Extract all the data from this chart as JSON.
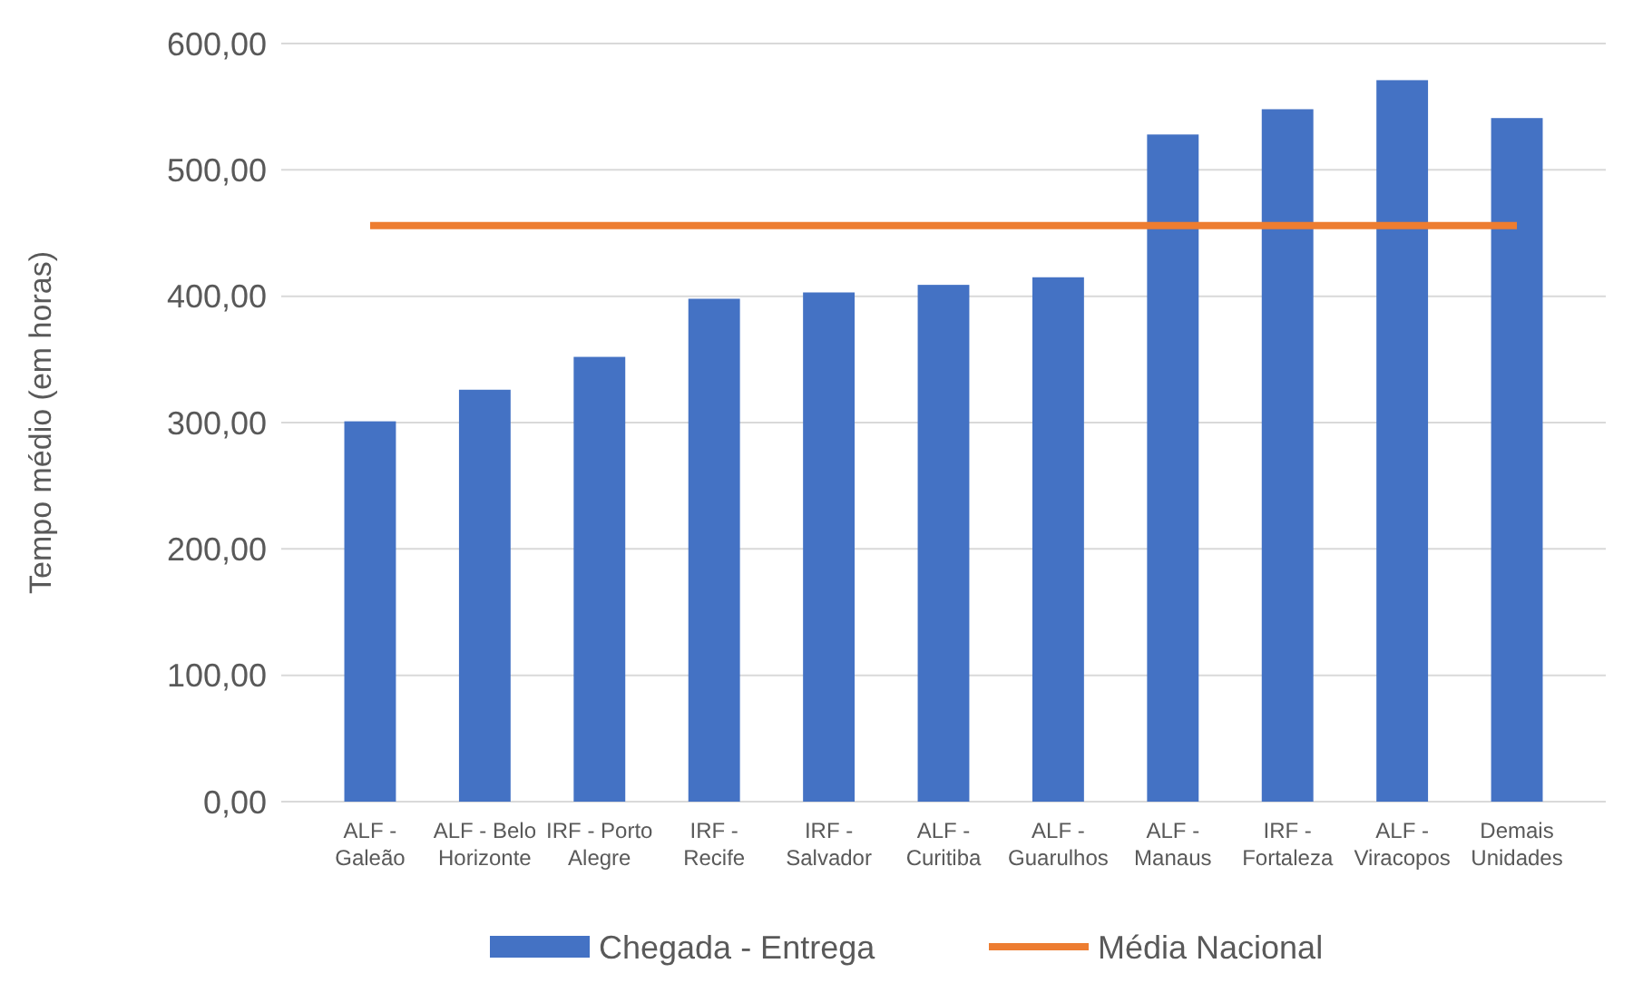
{
  "chart_data": {
    "type": "bar",
    "ylabel": "Tempo médio (em horas)",
    "categories": [
      "ALF - Galeão",
      "ALF - Belo Horizonte",
      "IRF - Porto Alegre",
      "IRF - Recife",
      "IRF - Salvador",
      "ALF - Curitiba",
      "ALF - Guarulhos",
      "ALF - Manaus",
      "IRF - Fortaleza",
      "ALF - Viracopos",
      "Demais Unidades"
    ],
    "series": [
      {
        "name": "Chegada - Entrega",
        "color": "#4472c4",
        "values": [
          301,
          326,
          352,
          398,
          403,
          409,
          415,
          528,
          548,
          571,
          541
        ]
      },
      {
        "name": "Média Nacional",
        "type": "line",
        "color": "#ed7d31",
        "values": [
          456,
          456,
          456,
          456,
          456,
          456,
          456,
          456,
          456,
          456,
          456
        ]
      }
    ],
    "ylim": [
      0,
      600
    ],
    "yticks": [
      {
        "value": 0,
        "label": "0,00"
      },
      {
        "value": 100,
        "label": "100,00"
      },
      {
        "value": 200,
        "label": "200,00"
      },
      {
        "value": 300,
        "label": "300,00"
      },
      {
        "value": 400,
        "label": "400,00"
      },
      {
        "value": 500,
        "label": "500,00"
      },
      {
        "value": 600,
        "label": "600,00"
      }
    ],
    "grid": "y",
    "legend": "bottom"
  }
}
